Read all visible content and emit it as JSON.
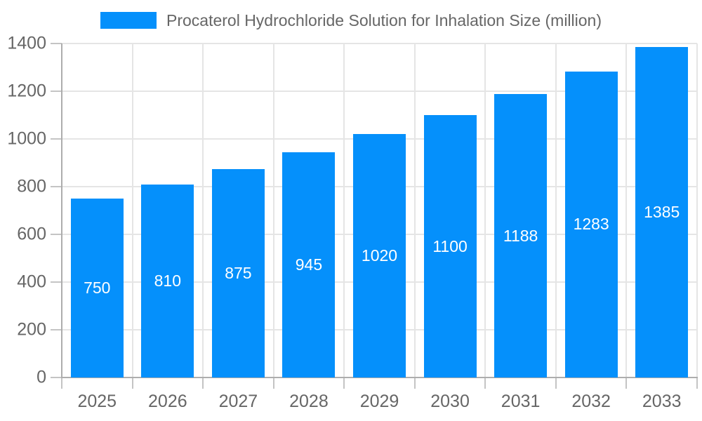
{
  "chart_data": {
    "type": "bar",
    "title": "Procaterol Hydrochloride Solution for Inhalation Size (million)",
    "legend": [
      "Procaterol Hydrochloride Solution for Inhalation Size (million)"
    ],
    "legend_position": "top",
    "categories": [
      "2025",
      "2026",
      "2027",
      "2028",
      "2029",
      "2030",
      "2031",
      "2032",
      "2033"
    ],
    "values": [
      750,
      810,
      875,
      945,
      1020,
      1100,
      1188,
      1283,
      1385
    ],
    "xlabel": "",
    "ylabel": "",
    "ylim": [
      0,
      1400
    ],
    "yticks": [
      0,
      200,
      400,
      600,
      800,
      1000,
      1200,
      1400
    ],
    "grid": true,
    "bar_value_labels": true
  },
  "colors": {
    "bar": "#0590FB",
    "bar_label": "#FFFFFF",
    "grid": "#E5E5E5",
    "axis": "#ADADAD",
    "tick": "#C4C4C4",
    "text": "#666666",
    "background": "#FFFFFF"
  }
}
